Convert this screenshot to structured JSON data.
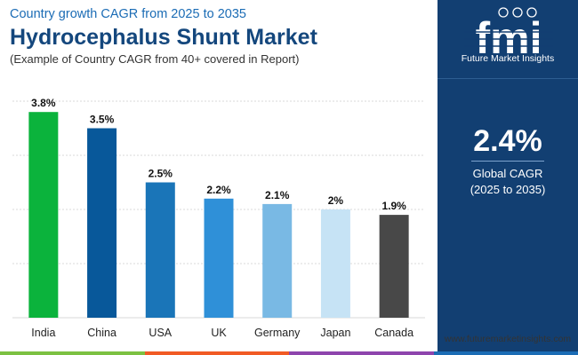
{
  "header": {
    "supertitle": "Country growth CAGR from 2025 to 2035",
    "title": "Hydrocephalus Shunt Market",
    "subtitle": "(Example of Country CAGR from 40+ covered in Report)"
  },
  "chart_data": {
    "type": "bar",
    "categories": [
      "India",
      "China",
      "USA",
      "UK",
      "Germany",
      "Japan",
      "Canada"
    ],
    "values": [
      3.8,
      3.5,
      2.5,
      2.2,
      2.1,
      2.0,
      1.9
    ],
    "value_labels": [
      "3.8%",
      "3.5%",
      "2.5%",
      "2.2%",
      "2.1%",
      "2%",
      "1.9%"
    ],
    "colors": [
      "#0bb33c",
      "#08589a",
      "#1a75b8",
      "#2f90d8",
      "#79b9e4",
      "#c6e3f5",
      "#484848"
    ],
    "ylim": [
      0,
      4
    ],
    "grid": true,
    "xlabel": "",
    "ylabel": ""
  },
  "side_panel": {
    "logo_text": "fmi",
    "tagline": "Future Market Insights",
    "global_cagr_value": "2.4%",
    "global_cagr_label": "Global CAGR",
    "global_cagr_period": "(2025 to 2035)"
  },
  "footer": {
    "website": "www.futuremarketinsights.com"
  },
  "colors": {
    "brand_navy": "#123f72",
    "title_blue": "#14477d",
    "bottom_band": [
      "#7cc142",
      "#f15a24",
      "#8e44ad",
      "#1b6cb5"
    ]
  }
}
